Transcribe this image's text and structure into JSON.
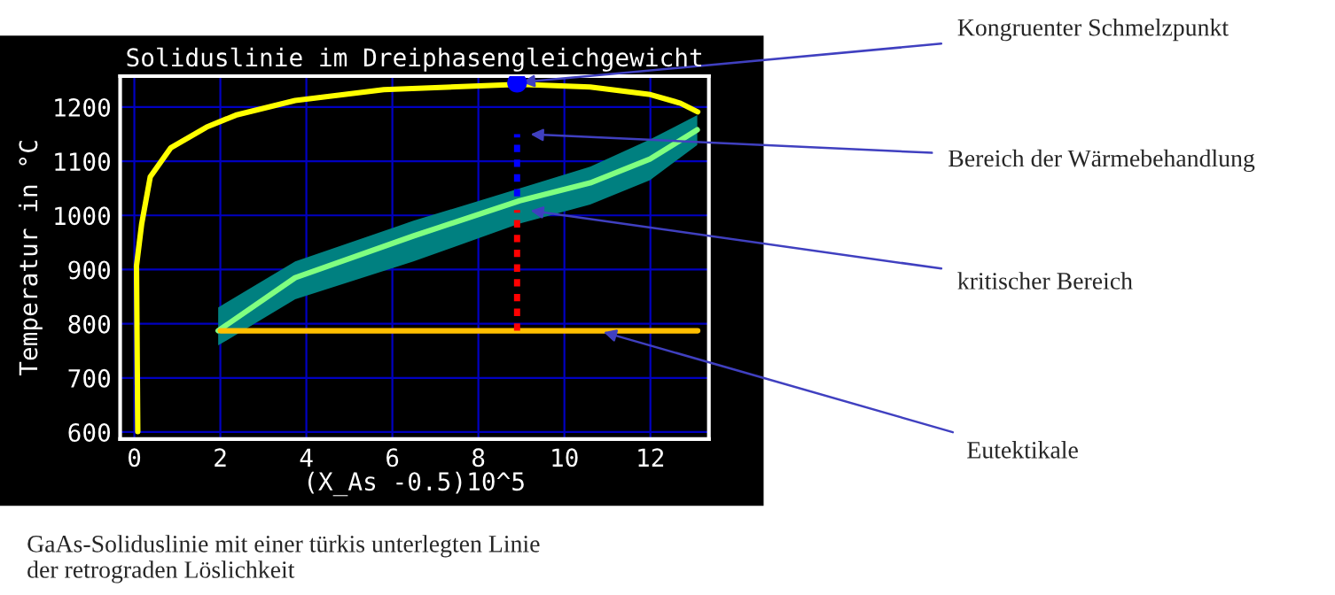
{
  "chart_data": {
    "type": "line",
    "title": "Soliduslinie im Dreiphasengleichgewicht",
    "xlabel": "(X_As -0.5)10^5",
    "ylabel": "Temperatur in °C",
    "xlim": [
      -0.33,
      13.36
    ],
    "ylim": [
      587,
      1257
    ],
    "xticks": [
      0,
      2,
      4,
      6,
      8,
      10,
      12
    ],
    "yticks": [
      600,
      700,
      800,
      900,
      1000,
      1100,
      1200
    ],
    "grid": true,
    "legend": false,
    "series": [
      {
        "color": "#ffff00",
        "x": [
          0.08,
          0.05,
          0.17,
          0.37,
          0.85,
          1.68,
          2.36,
          3.74,
          5.8,
          8.96,
          10.6,
          12,
          12.7,
          13.1
        ],
        "values": [
          601,
          907,
          984,
          1071,
          1125,
          1163,
          1185,
          1212,
          1232,
          1242,
          1237,
          1223,
          1207,
          1191
        ]
      },
      {
        "color": "#80ff80",
        "x": [
          1.95,
          3.74,
          6.49,
          8.96,
          10.6,
          11.99,
          13.09
        ],
        "values": [
          787,
          885,
          962,
          1027,
          1060,
          1104,
          1158
        ],
        "lower": [
          760,
          845,
          915,
          985,
          1020,
          1065,
          1130
        ],
        "upper": [
          830,
          915,
          990,
          1050,
          1090,
          1140,
          1185
        ]
      },
      {
        "color": "#ffbf00",
        "x": [
          2,
          13.1
        ],
        "values": [
          787,
          787
        ]
      },
      {
        "color": "#0000ff",
        "line_style": "dotted",
        "x": [
          8.9,
          8.9
        ],
        "values": [
          1035,
          1150
        ]
      },
      {
        "color": "#ff0000",
        "line_style": "dotted",
        "x": [
          8.9,
          8.9
        ],
        "values": [
          787,
          1010
        ]
      },
      {
        "type": "scatter",
        "color": "#0000ff",
        "marker": "circle",
        "x": [
          8.9
        ],
        "values": [
          1245
        ]
      }
    ],
    "annotations": [
      {
        "text": "Kongruenter Schmelzpunkt",
        "x": 8.9,
        "y": 1245
      },
      {
        "text": "Bereich der Wärmebehandlung",
        "x": 9.1,
        "y": 1150
      },
      {
        "text": "kritischer Bereich",
        "x": 9.1,
        "y": 1010
      },
      {
        "text": "Eutektikale",
        "x": 10.8,
        "y": 787
      },
      "GaAs-Soliduslinie mit einer türkis unterlegten Linie\nder retrograden Löslichkeit"
    ]
  }
}
